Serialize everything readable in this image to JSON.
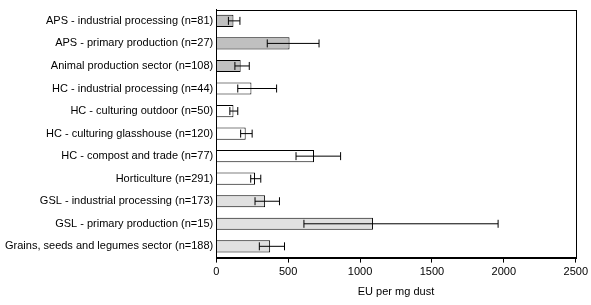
{
  "chart_data": {
    "type": "bar",
    "orientation": "horizontal",
    "x_label": "EU per mg dust",
    "categories": [
      "APS - industrial processing (n=81)",
      "APS - primary production (n=27)",
      "Animal production sector (n=108)",
      "HC - industrial processing (n=44)",
      "HC - culturing outdoor (n=50)",
      "HC - culturing glasshouse (n=120)",
      "HC - compost and trade (n=77)",
      "Horticulture (n=291)",
      "GSL - industrial processing (n=173)",
      "GSL - primary production (n=15)",
      "Grains, seeds and legumes sector (n=188)"
    ],
    "values": [
      120,
      510,
      170,
      245,
      120,
      205,
      680,
      270,
      340,
      1090,
      375
    ],
    "error_low": [
      85,
      355,
      130,
      150,
      95,
      170,
      555,
      240,
      270,
      610,
      300
    ],
    "error_high": [
      165,
      715,
      230,
      420,
      150,
      250,
      865,
      310,
      440,
      1960,
      475
    ],
    "colors": [
      "#c0c0c0",
      "#c0c0c0",
      "#c0c0c0",
      "#ffffff",
      "#ffffff",
      "#ffffff",
      "#ffffff",
      "#ffffff",
      "#e0e0e0",
      "#e0e0e0",
      "#e0e0e0"
    ],
    "xlim": [
      0,
      2500
    ],
    "xticks": [
      0,
      500,
      1000,
      1500,
      2000,
      2500
    ],
    "grid": false
  }
}
